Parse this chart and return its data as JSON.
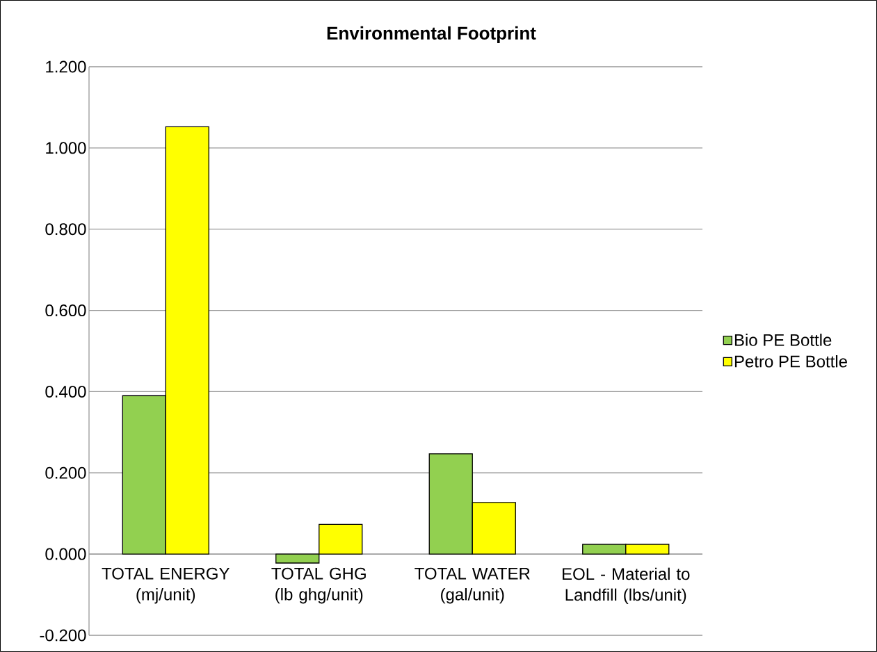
{
  "chart_data": {
    "type": "bar",
    "title": "Environmental Footprint",
    "categories": [
      "TOTAL ENERGY (mj/unit)",
      "TOTAL GHG (lb ghg/unit)",
      "TOTAL WATER (gal/unit)",
      "EOL - Material to Landfill (lbs/unit)"
    ],
    "series": [
      {
        "name": "Bio PE Bottle",
        "color": "#92d050",
        "values": [
          0.39,
          -0.022,
          0.247,
          0.024
        ]
      },
      {
        "name": "Petro PE Bottle",
        "color": "#ffff00",
        "values": [
          1.052,
          0.073,
          0.127,
          0.024
        ]
      }
    ],
    "ylim": [
      -0.2,
      1.2
    ],
    "yticks": [
      {
        "value": -0.2,
        "label": "-0.200"
      },
      {
        "value": 0,
        "label": "0.000"
      },
      {
        "value": 0.2,
        "label": "0.200"
      },
      {
        "value": 0.4,
        "label": "0.400"
      },
      {
        "value": 0.6,
        "label": "0.600"
      },
      {
        "value": 0.8,
        "label": "0.800"
      },
      {
        "value": 1.0,
        "label": "1.000"
      },
      {
        "value": 1.2,
        "label": "1.200"
      }
    ],
    "grid": "y",
    "legend": "right"
  }
}
